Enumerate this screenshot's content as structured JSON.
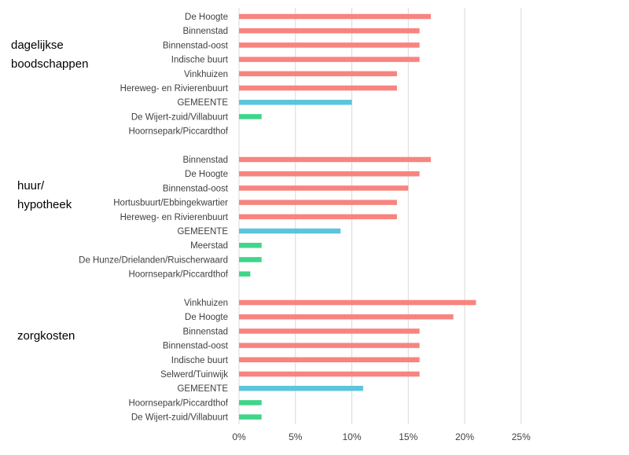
{
  "chart_data": {
    "type": "bar",
    "orientation": "horizontal",
    "x_ticks": [
      "0%",
      "5%",
      "10%",
      "15%",
      "20%",
      "25%"
    ],
    "xlim": [
      0,
      25
    ],
    "grid": "vertical",
    "colors": {
      "high": "#f8847f",
      "municipality": "#5bc4de",
      "low": "#3fd68a"
    },
    "groups": [
      {
        "label_lines": [
          "dagelijkse",
          "boodschappen"
        ],
        "bars": [
          {
            "category": "De Hoogte",
            "value": 17,
            "color": "high"
          },
          {
            "category": "Binnenstad",
            "value": 16,
            "color": "high"
          },
          {
            "category": "Binnenstad-oost",
            "value": 16,
            "color": "high"
          },
          {
            "category": "Indische buurt",
            "value": 16,
            "color": "high"
          },
          {
            "category": "Vinkhuizen",
            "value": 14,
            "color": "high"
          },
          {
            "category": "Hereweg- en Rivierenbuurt",
            "value": 14,
            "color": "high"
          },
          {
            "category": "GEMEENTE",
            "value": 10,
            "color": "municipality"
          },
          {
            "category": "De Wijert-zuid/Villabuurt",
            "value": 2,
            "color": "low"
          },
          {
            "category": "Hoornsepark/Piccardthof",
            "value": 0,
            "color": "low"
          }
        ]
      },
      {
        "label_lines": [
          "huur/",
          "hypotheek"
        ],
        "bars": [
          {
            "category": "Binnenstad",
            "value": 17,
            "color": "high"
          },
          {
            "category": "De Hoogte",
            "value": 16,
            "color": "high"
          },
          {
            "category": "Binnenstad-oost",
            "value": 15,
            "color": "high"
          },
          {
            "category": "Hortusbuurt/Ebbingekwartier",
            "value": 14,
            "color": "high"
          },
          {
            "category": "Hereweg- en Rivierenbuurt",
            "value": 14,
            "color": "high"
          },
          {
            "category": "GEMEENTE",
            "value": 9,
            "color": "municipality"
          },
          {
            "category": "Meerstad",
            "value": 2,
            "color": "low"
          },
          {
            "category": "De Hunze/Drielanden/Ruischerwaard",
            "value": 2,
            "color": "low"
          },
          {
            "category": "Hoornsepark/Piccardthof",
            "value": 1,
            "color": "low"
          }
        ]
      },
      {
        "label_lines": [
          "zorgkosten"
        ],
        "bars": [
          {
            "category": "Vinkhuizen",
            "value": 21,
            "color": "high"
          },
          {
            "category": "De Hoogte",
            "value": 19,
            "color": "high"
          },
          {
            "category": "Binnenstad",
            "value": 16,
            "color": "high"
          },
          {
            "category": "Binnenstad-oost",
            "value": 16,
            "color": "high"
          },
          {
            "category": "Indische buurt",
            "value": 16,
            "color": "high"
          },
          {
            "category": "Selwerd/Tuinwijk",
            "value": 16,
            "color": "high"
          },
          {
            "category": "GEMEENTE",
            "value": 11,
            "color": "municipality"
          },
          {
            "category": "Hoornsepark/Piccardthof",
            "value": 2,
            "color": "low"
          },
          {
            "category": "De Wijert-zuid/Villabuurt",
            "value": 2,
            "color": "low"
          }
        ]
      }
    ]
  }
}
